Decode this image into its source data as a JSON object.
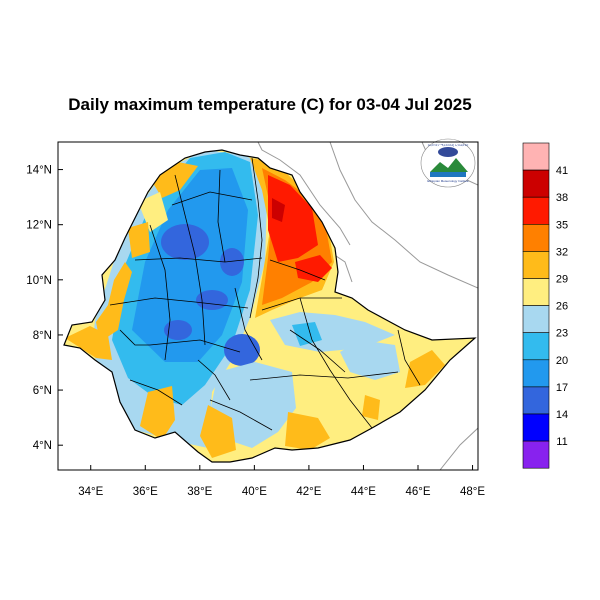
{
  "title": "Daily maximum temperature (C) for 03-04 Jul 2025",
  "logo": {
    "text_top": "የኢትዮጵያ ሚቲዎሮሎጂ ኢንስቲትዩት",
    "text_bottom": "Ethiopian Meteorology Institute"
  },
  "axes": {
    "x_ticks": [
      "34°E",
      "36°E",
      "38°E",
      "40°E",
      "42°E",
      "44°E",
      "46°E",
      "48°E"
    ],
    "y_ticks": [
      "14°N",
      "12°N",
      "10°N",
      "8°N",
      "6°N",
      "4°N"
    ],
    "x_range": [
      32.8,
      48.2
    ],
    "y_range": [
      3.1,
      15.0
    ]
  },
  "colorbar": {
    "labels": [
      "41",
      "38",
      "35",
      "32",
      "29",
      "26",
      "23",
      "20",
      "17",
      "14",
      "11"
    ],
    "colors": [
      "#ffb3b3",
      "#cc0000",
      "#ff1a00",
      "#ff8000",
      "#ffbb1a",
      "#ffee80",
      "#a8d8f0",
      "#33bbee",
      "#2299ee",
      "#3366dd",
      "#0000ff",
      "#8822ee"
    ]
  }
}
